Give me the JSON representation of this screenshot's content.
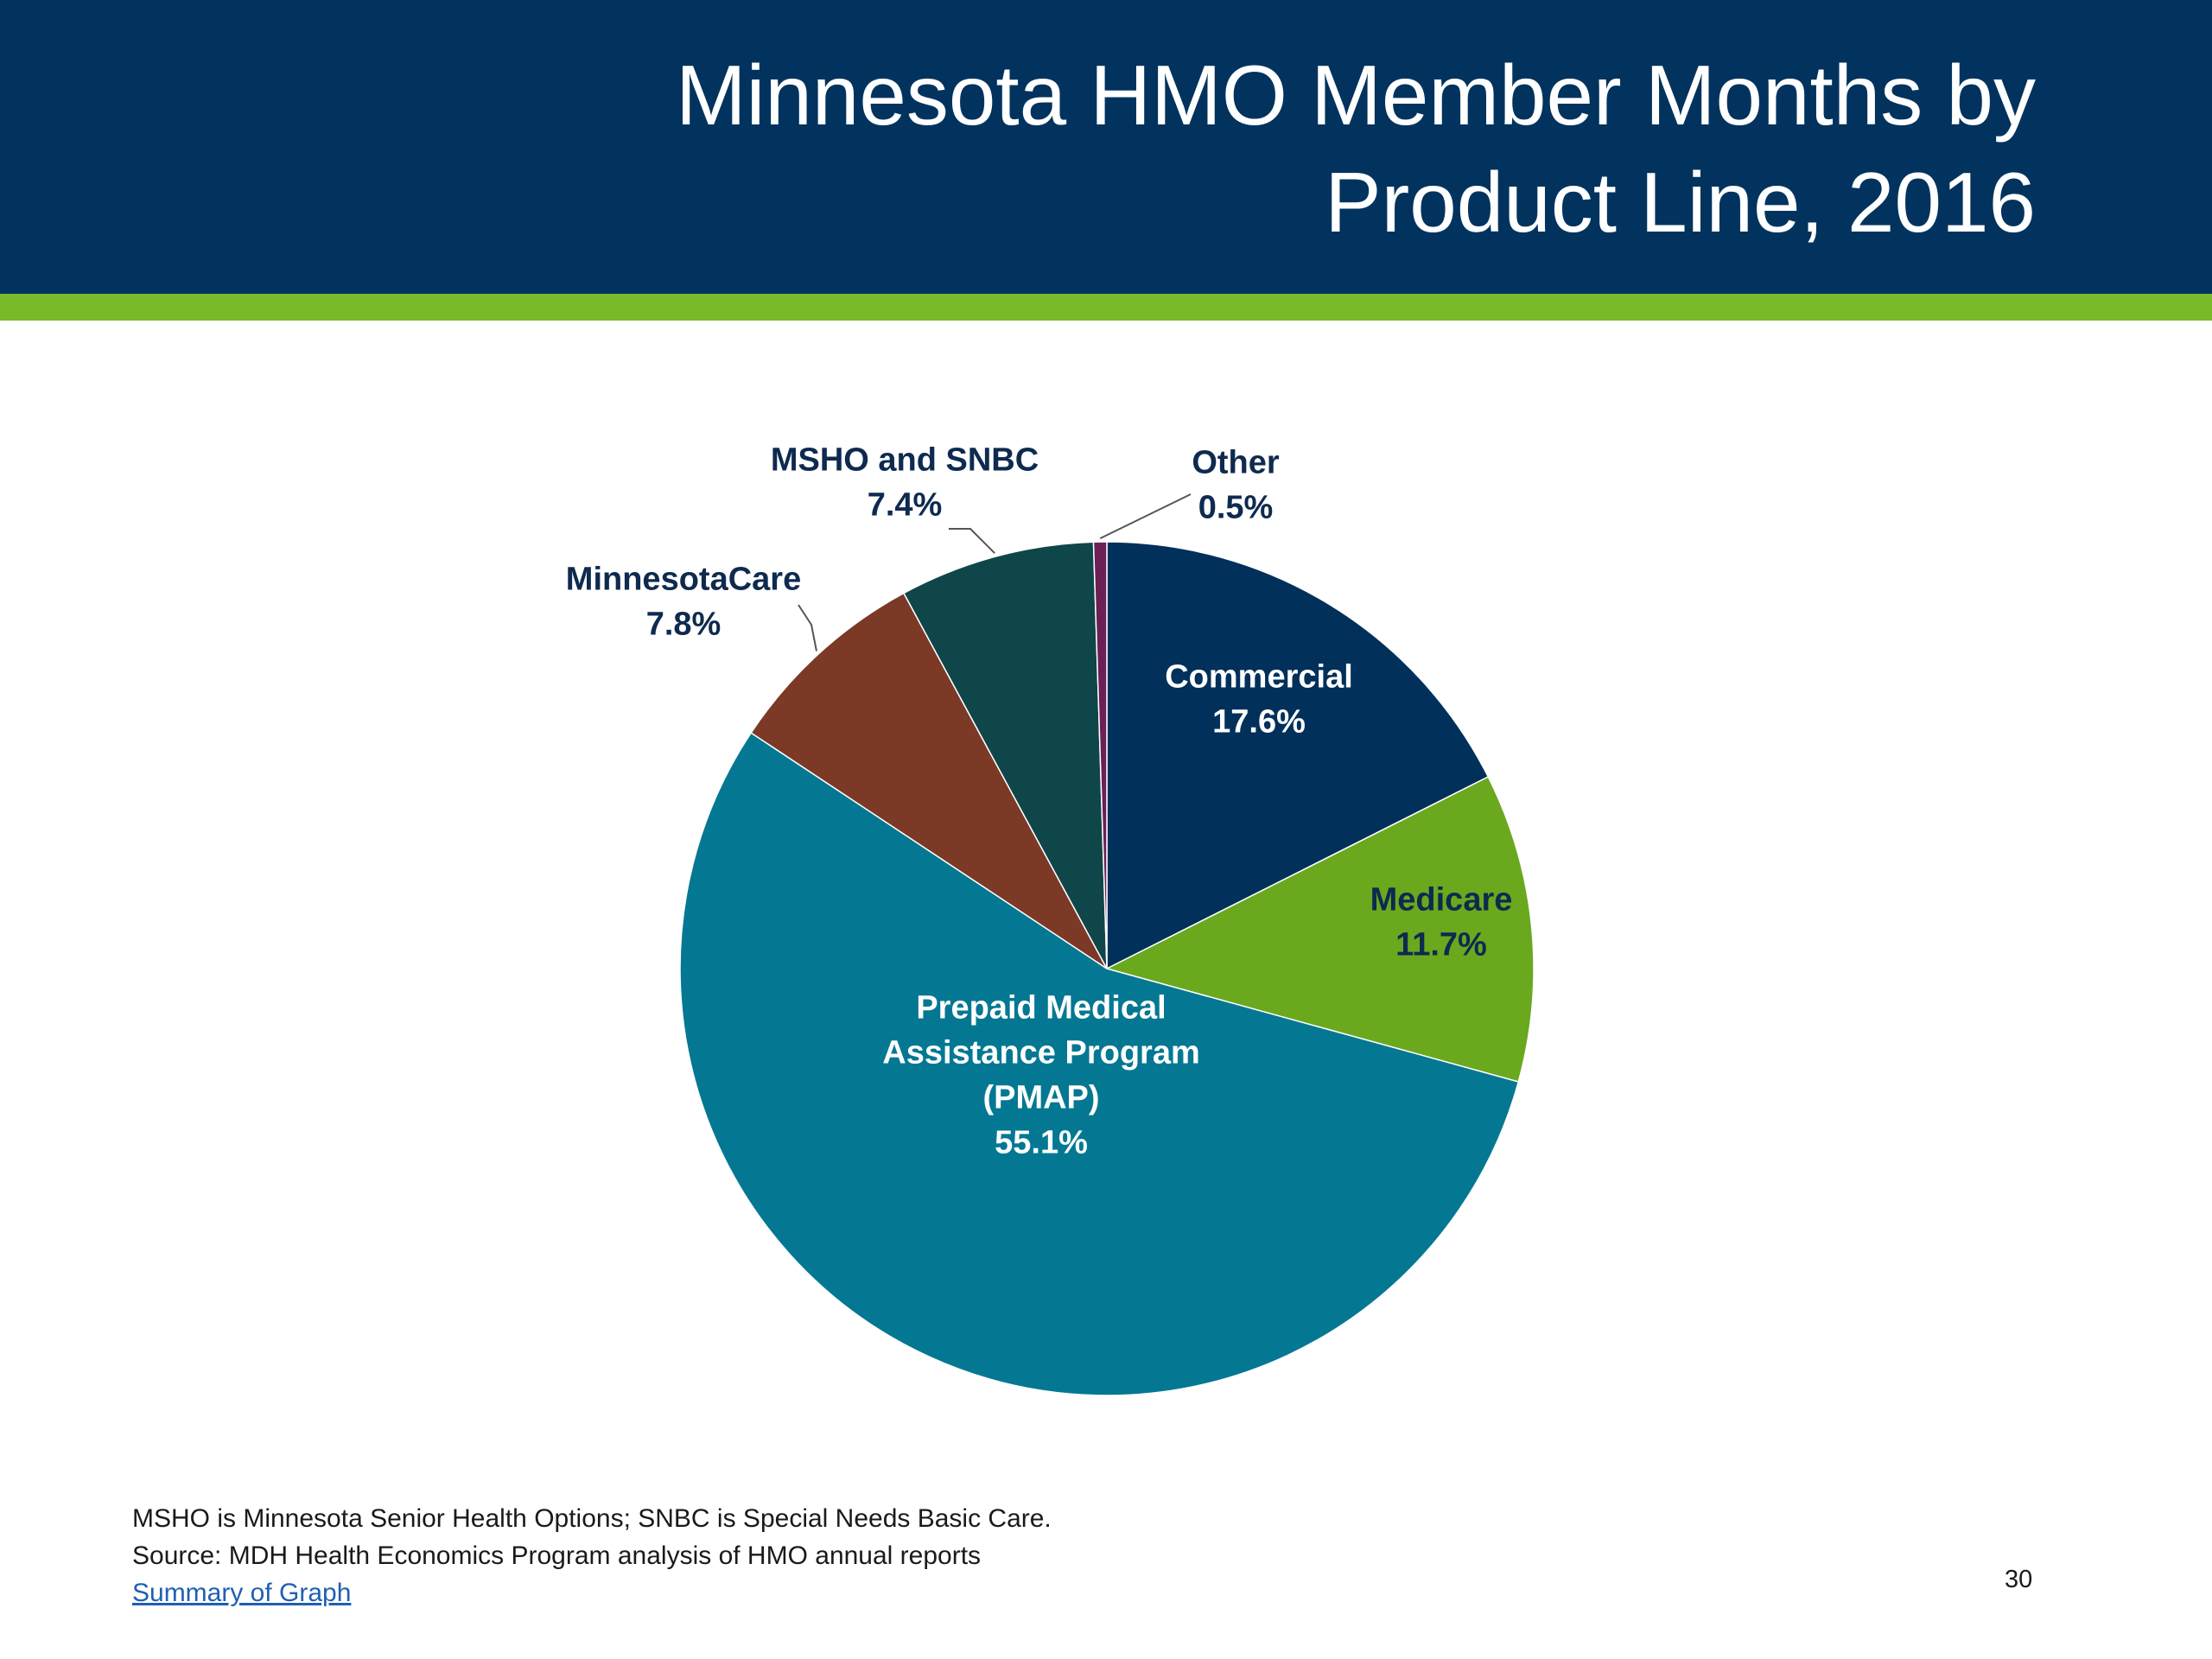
{
  "slide": {
    "title_line1": "Minnesota HMO Member Months by",
    "title_line2": "Product Line, 2016",
    "footnote_line1": "MSHO is Minnesota Senior Health Options; SNBC is Special Needs Basic Care.",
    "footnote_line2": "Source: MDH Health Economics Program analysis of HMO annual reports",
    "summary_link": "Summary of Graph",
    "page_number": "30"
  },
  "colors": {
    "header_bg": "#01335e",
    "accent_bar": "#7ab929",
    "label_dark": "#0e2a4f",
    "label_light": "#ffffff"
  },
  "chart_data": {
    "type": "pie",
    "title": "Minnesota HMO Member Months by Product Line, 2016",
    "unit": "%",
    "start": "12 o'clock",
    "direction": "clockwise",
    "slices": [
      {
        "name": "Commercial",
        "label_lines": [
          "Commercial",
          "17.6%"
        ],
        "value": 17.6,
        "color": "#01305a",
        "label_color": "#ffffff",
        "leader": false
      },
      {
        "name": "Medicare",
        "label_lines": [
          "Medicare",
          "11.7%"
        ],
        "value": 11.7,
        "color": "#6aa81e",
        "label_color": "#0e2a4f",
        "leader": false
      },
      {
        "name": "Prepaid Medical Assistance Program (PMAP)",
        "label_lines": [
          "Prepaid Medical",
          "Assistance Program",
          "(PMAP)",
          "55.1%"
        ],
        "value": 55.1,
        "color": "#047893",
        "label_color": "#ffffff",
        "leader": false
      },
      {
        "name": "MinnesotaCare",
        "label_lines": [
          "MinnesotaCare",
          "7.8%"
        ],
        "value": 7.8,
        "color": "#7b3926",
        "label_color": "#0e2a4f",
        "leader": true
      },
      {
        "name": "MSHO and SNBC",
        "label_lines": [
          "MSHO and SNBC",
          "7.4%"
        ],
        "value": 7.4,
        "color": "#0e464a",
        "label_color": "#0e2a4f",
        "leader": true
      },
      {
        "name": "Other",
        "label_lines": [
          "Other",
          "0.5%"
        ],
        "value": 0.5,
        "color": "#6b1f55",
        "label_color": "#0e2a4f",
        "leader": true
      }
    ]
  }
}
